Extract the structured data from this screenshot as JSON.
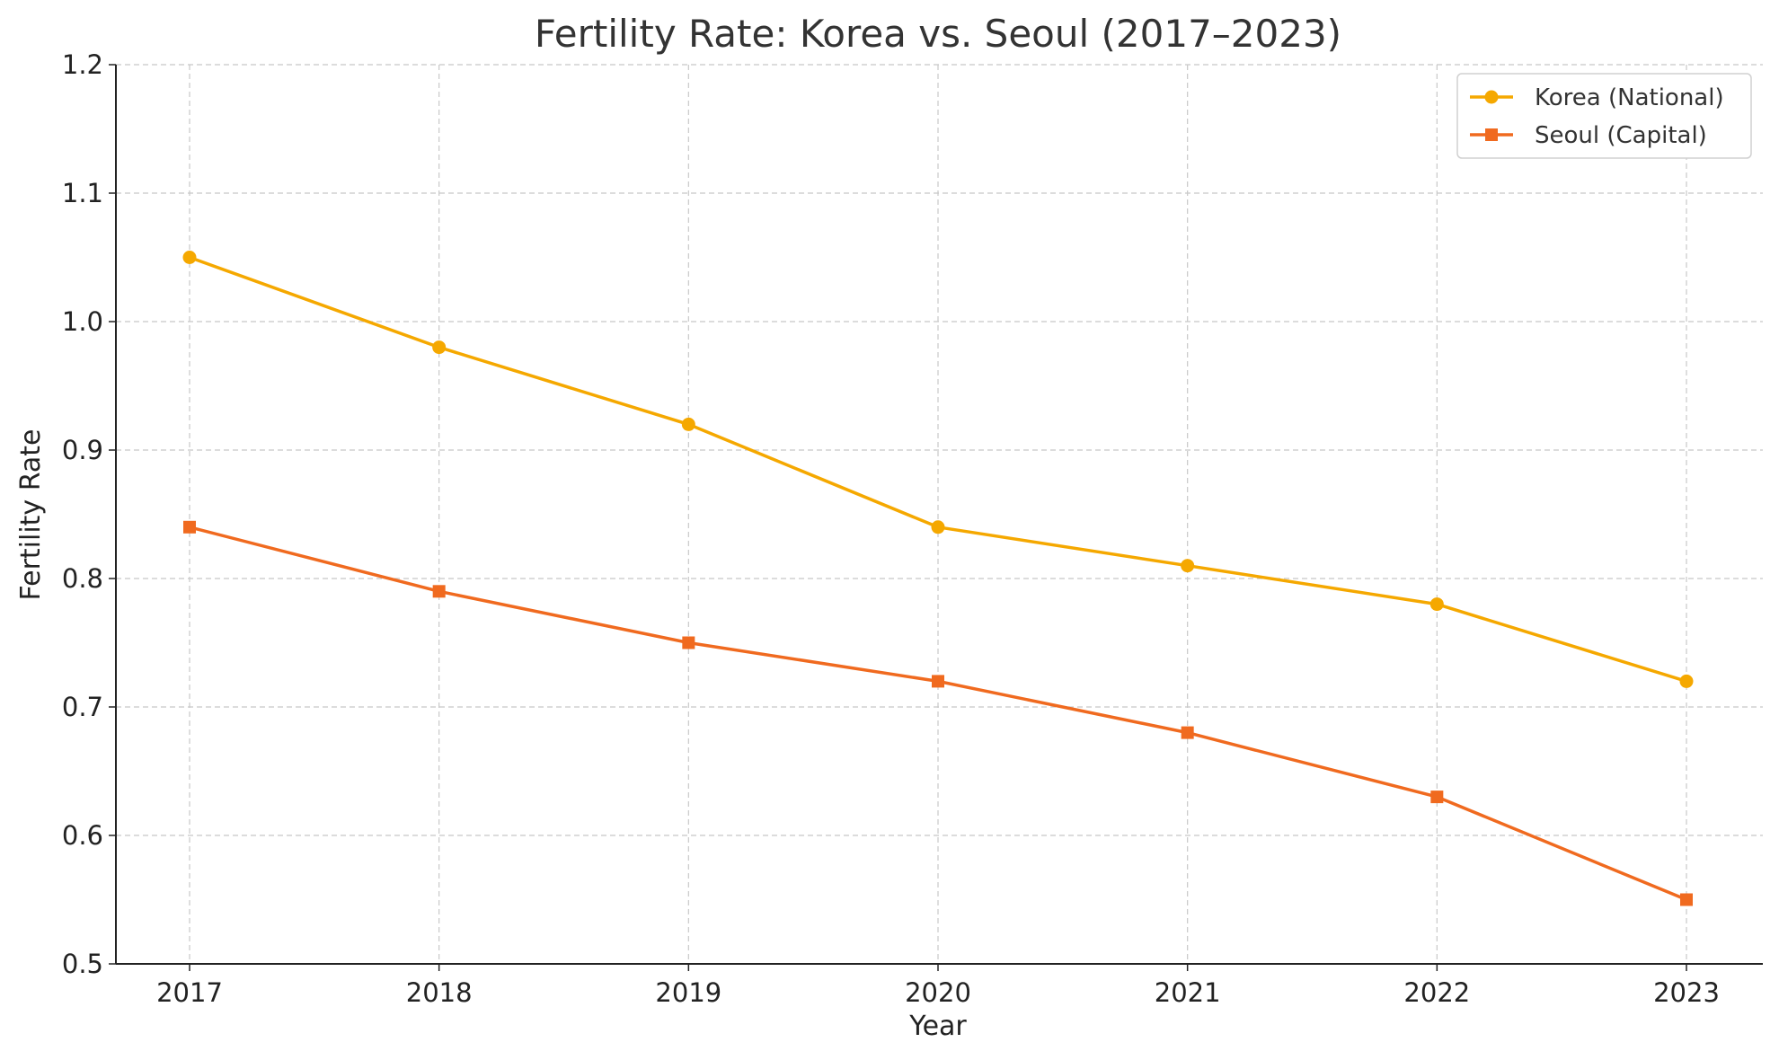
{
  "chart_data": {
    "type": "line",
    "title": "Fertility Rate: Korea vs. Seoul (2017–2023)",
    "xlabel": "Year",
    "ylabel": "Fertility Rate",
    "categories": [
      "2017",
      "2018",
      "2019",
      "2020",
      "2021",
      "2022",
      "2023"
    ],
    "x": [
      2017,
      2018,
      2019,
      2020,
      2021,
      2022,
      2023
    ],
    "yticks": [
      "0.5",
      "0.6",
      "0.7",
      "0.8",
      "0.9",
      "1.0",
      "1.1",
      "1.2"
    ],
    "ylim": [
      0.5,
      1.2
    ],
    "grid": true,
    "legend_position": "top-right",
    "series": [
      {
        "name": "Korea (National)",
        "values": [
          1.05,
          0.98,
          0.92,
          0.84,
          0.81,
          0.78,
          0.72
        ],
        "color": "#f5a800",
        "marker": "circle"
      },
      {
        "name": "Seoul (Capital)",
        "values": [
          0.84,
          0.79,
          0.75,
          0.72,
          0.68,
          0.63,
          0.55
        ],
        "color": "#f06a1f",
        "marker": "square"
      }
    ]
  }
}
